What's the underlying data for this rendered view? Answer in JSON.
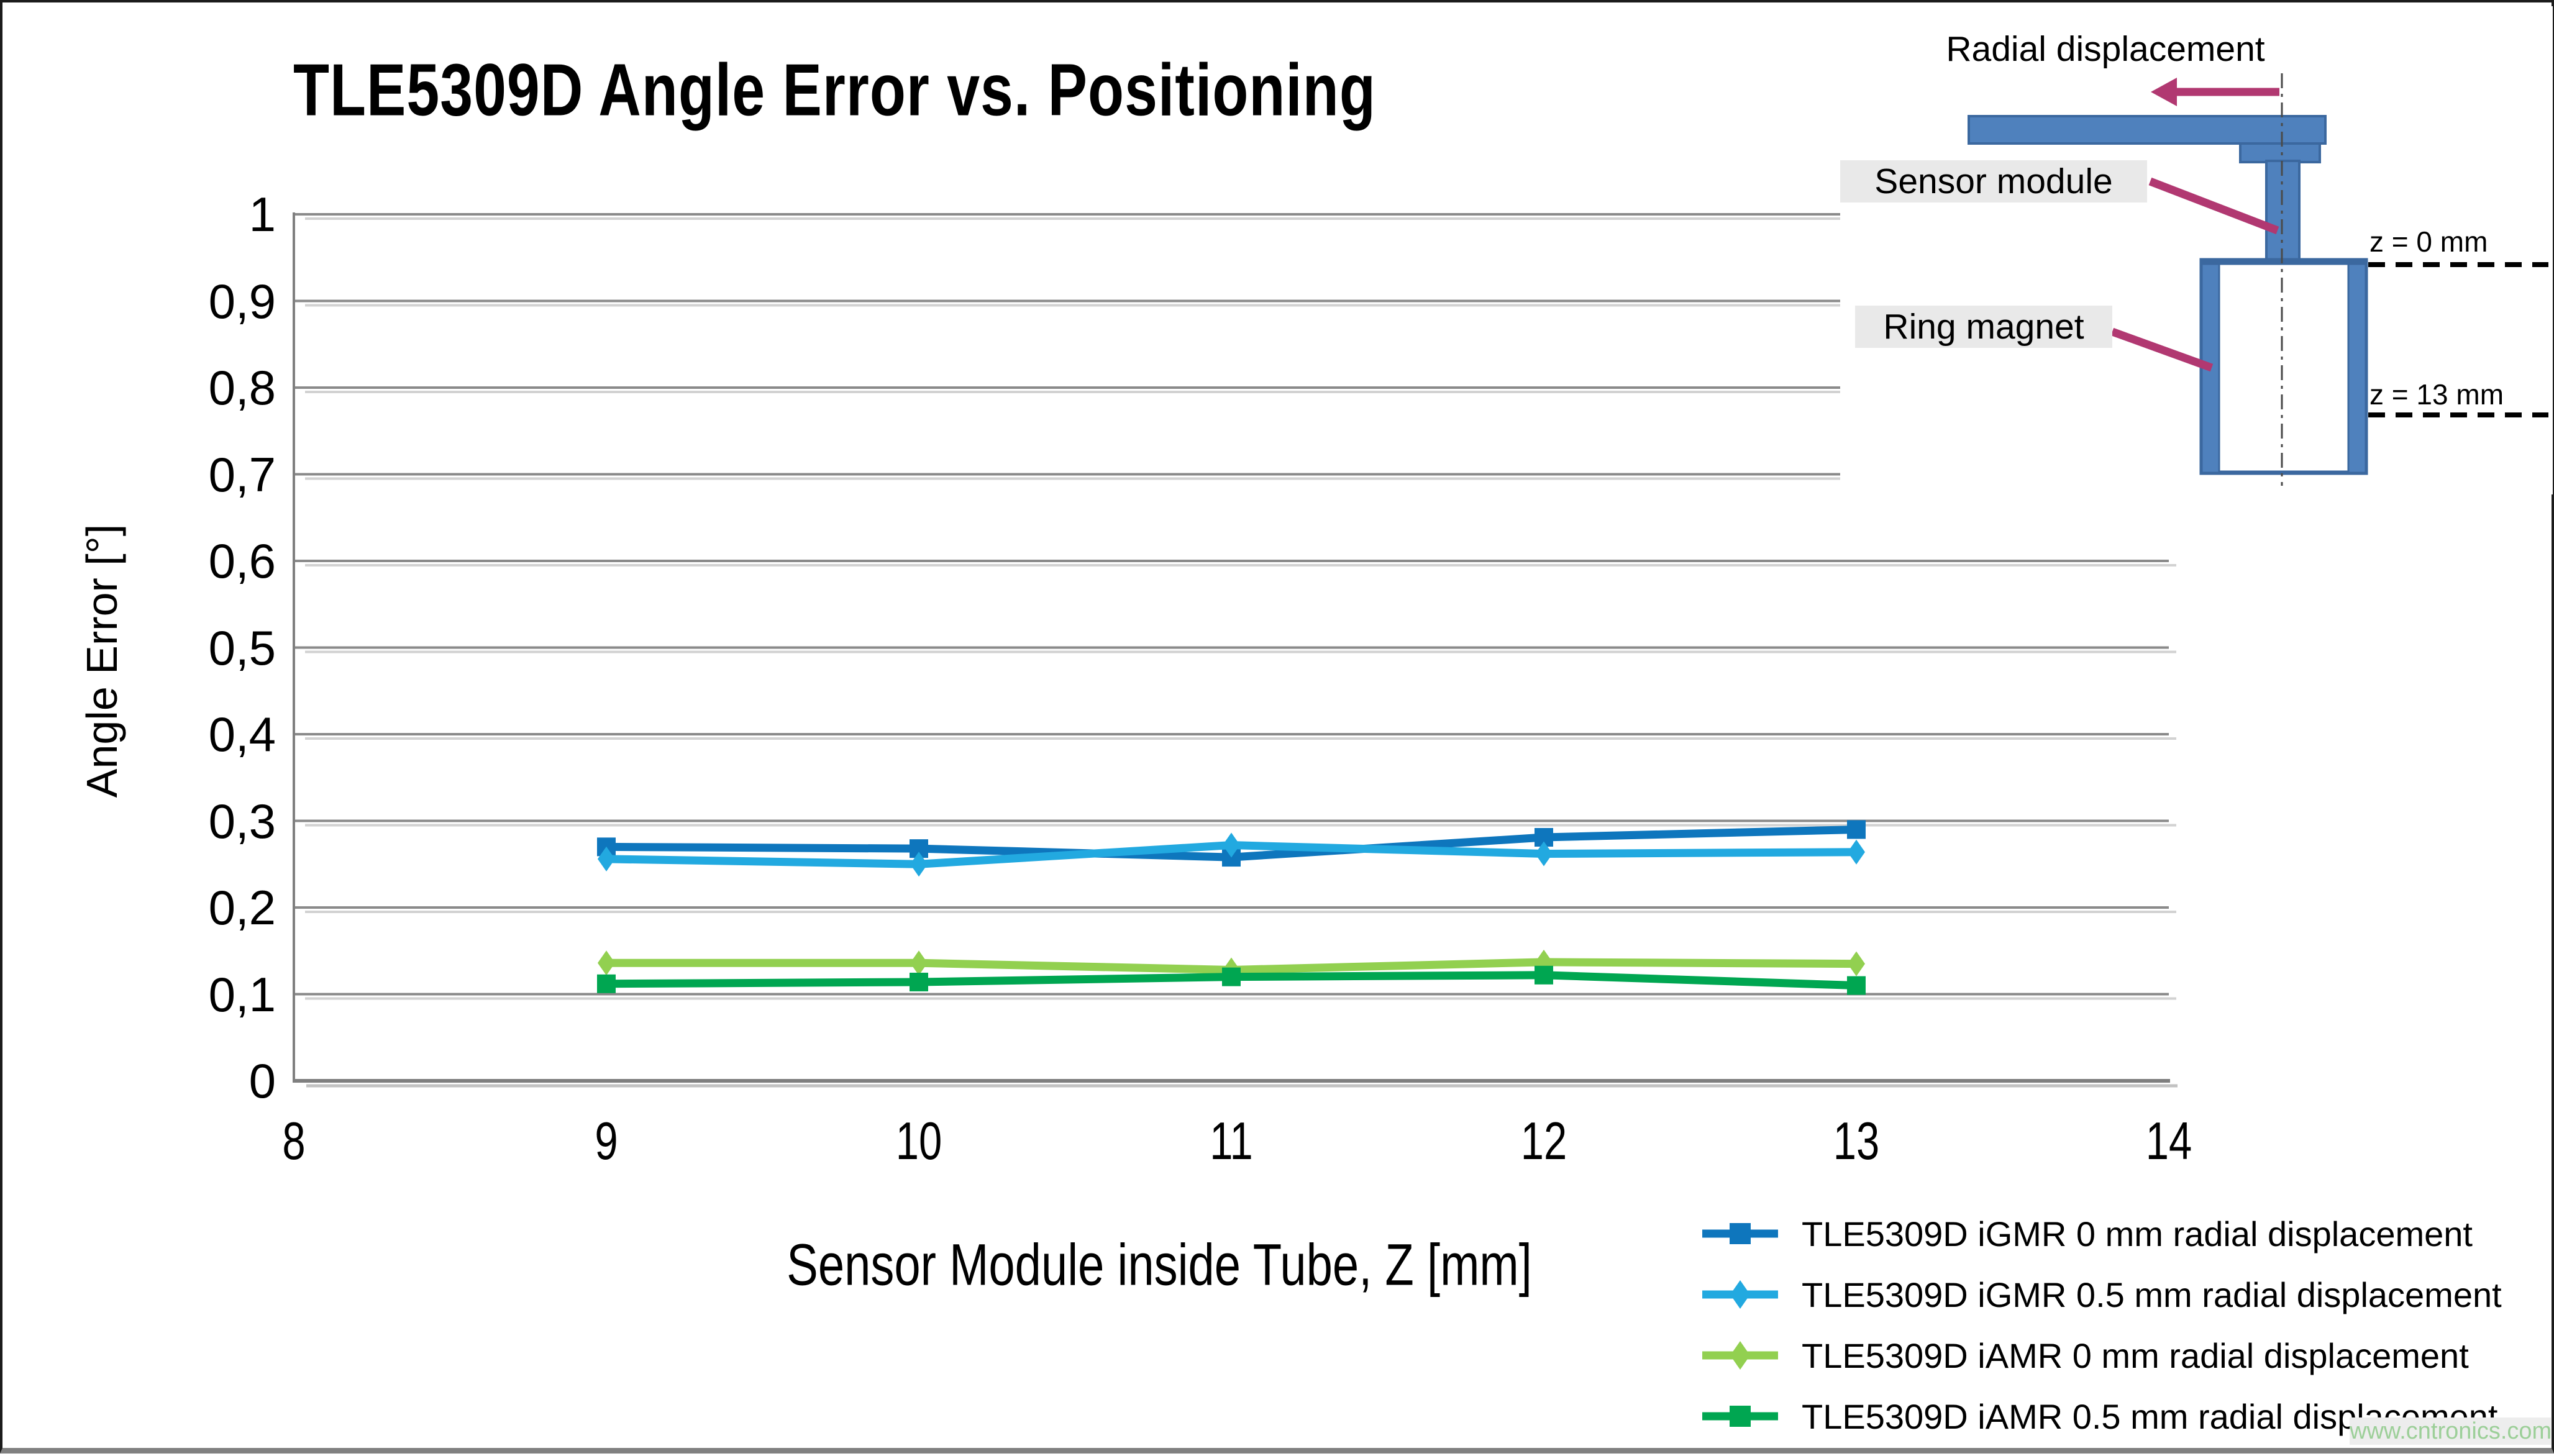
{
  "page": {
    "watermark": "www.cntronics.com"
  },
  "chart_data": {
    "type": "line",
    "title": "TLE5309D Angle Error vs. Positioning",
    "xlabel": "Sensor Module inside Tube, Z [mm]",
    "ylabel": "Angle Error [°]",
    "xlim": [
      8,
      14
    ],
    "ylim": [
      0,
      1
    ],
    "x_tick_labels": [
      "8",
      "9",
      "10",
      "11",
      "12",
      "13",
      "14"
    ],
    "y_tick_labels": [
      "1",
      "0,9",
      "0,8",
      "0,7",
      "0,6",
      "0,5",
      "0,4",
      "0,3",
      "0,2",
      "0,1",
      "0"
    ],
    "grid": "horizontal-only",
    "legend_position": "bottom-right",
    "x": [
      9,
      10,
      11,
      12,
      13
    ],
    "series": [
      {
        "name": "TLE5309D iGMR 0 mm radial displacement",
        "color": "#0E76BD",
        "marker": "square",
        "values": [
          0.27,
          0.268,
          0.258,
          0.281,
          0.29
        ]
      },
      {
        "name": "TLE5309D iGMR 0.5 mm radial displacement",
        "color": "#22A9E0",
        "marker": "diamond",
        "values": [
          0.256,
          0.25,
          0.272,
          0.262,
          0.264
        ]
      },
      {
        "name": "TLE5309D iAMR 0 mm radial displacement",
        "color": "#92D050",
        "marker": "diamond",
        "values": [
          0.136,
          0.136,
          0.128,
          0.137,
          0.135
        ]
      },
      {
        "name": "TLE5309D iAMR 0.5 mm radial displacement",
        "color": "#00A651",
        "marker": "square",
        "values": [
          0.112,
          0.114,
          0.12,
          0.122,
          0.11
        ]
      }
    ]
  },
  "inset": {
    "radial_label": "Radial displacement",
    "sensor_label": "Sensor module",
    "ring_label": "Ring magnet",
    "z_top": "z = 0 mm",
    "z_bottom": "z = 13 mm",
    "shape_fill": "#4F81BD",
    "shape_stroke": "#3B689F",
    "arrow_color": "#B13871"
  },
  "colors": {
    "gridline": "#8A8A8A",
    "axis": "#7F7F7F",
    "grid_shadow": "#D2D2D2"
  }
}
